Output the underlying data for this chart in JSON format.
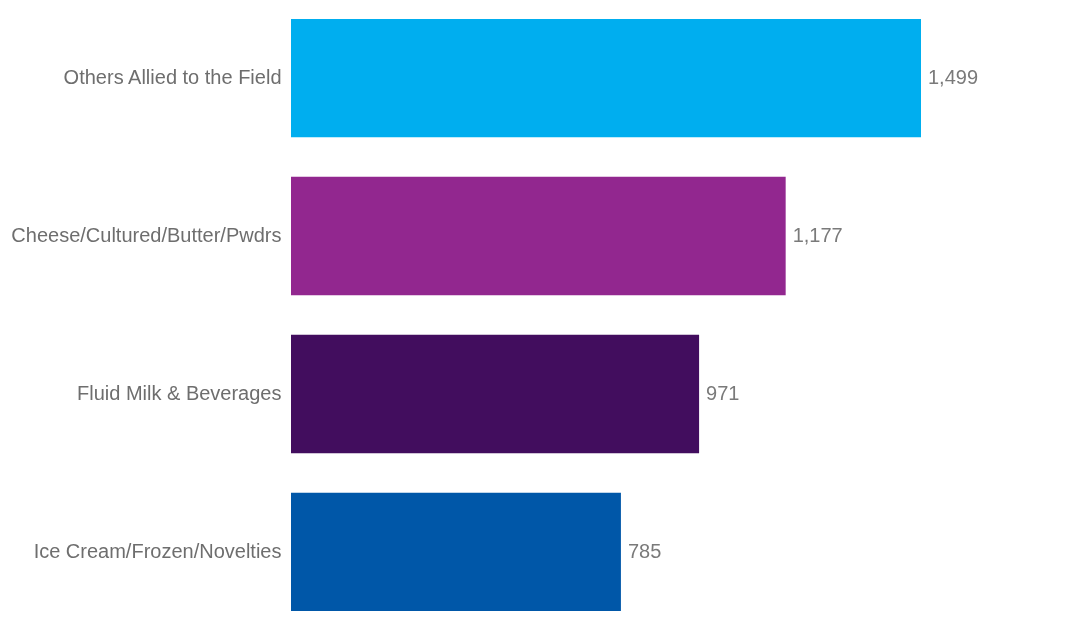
{
  "chart_data": {
    "type": "bar",
    "orientation": "horizontal",
    "categories": [
      "Others Allied to the Field",
      "Cheese/Cultured/Butter/Pwdrs",
      "Fluid Milk & Beverages",
      "Ice Cream/Frozen/Novelties"
    ],
    "values": [
      1499,
      1177,
      971,
      785
    ],
    "value_labels": [
      "1,499",
      "1,177",
      "971",
      "785"
    ],
    "colors": [
      "#00aeef",
      "#92278f",
      "#420d5e",
      "#0057a8"
    ]
  }
}
